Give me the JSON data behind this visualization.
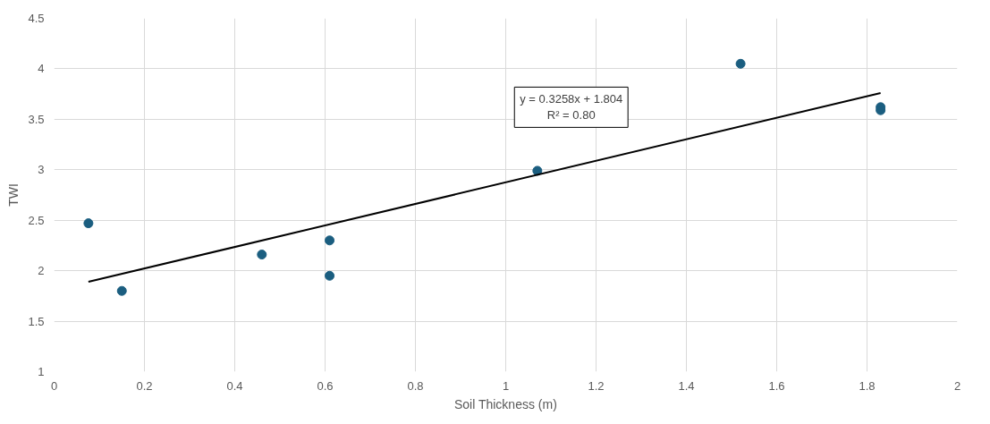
{
  "chart_data": {
    "type": "scatter",
    "xlabel": "Soil Thickness (m)",
    "ylabel": "TWI",
    "xlim": [
      0,
      2
    ],
    "ylim": [
      1,
      4.5
    ],
    "xticks": [
      0,
      0.2,
      0.4,
      0.6,
      0.8,
      1,
      1.2,
      1.4,
      1.6,
      1.8,
      2
    ],
    "yticks": [
      1,
      1.5,
      2,
      2.5,
      3,
      3.5,
      4,
      4.5
    ],
    "grid": true,
    "marker": "circle",
    "series": [
      {
        "color": "#1b5e80",
        "x": [
          0.076,
          0.15,
          0.46,
          0.61,
          0.61,
          1.07,
          1.52,
          1.83,
          1.83
        ],
        "values": [
          2.47,
          1.8,
          2.16,
          2.3,
          1.95,
          2.99,
          4.05,
          3.62,
          3.59
        ]
      },
      {
        "type": "line",
        "color": "#000000",
        "marker": "none",
        "line_style": "solid",
        "x": [
          0.076,
          1.83
        ],
        "values": [
          1.89,
          3.76
        ]
      }
    ],
    "annotations": [
      "y = 0.3258x + 1.804\nR² = 0.80"
    ]
  }
}
